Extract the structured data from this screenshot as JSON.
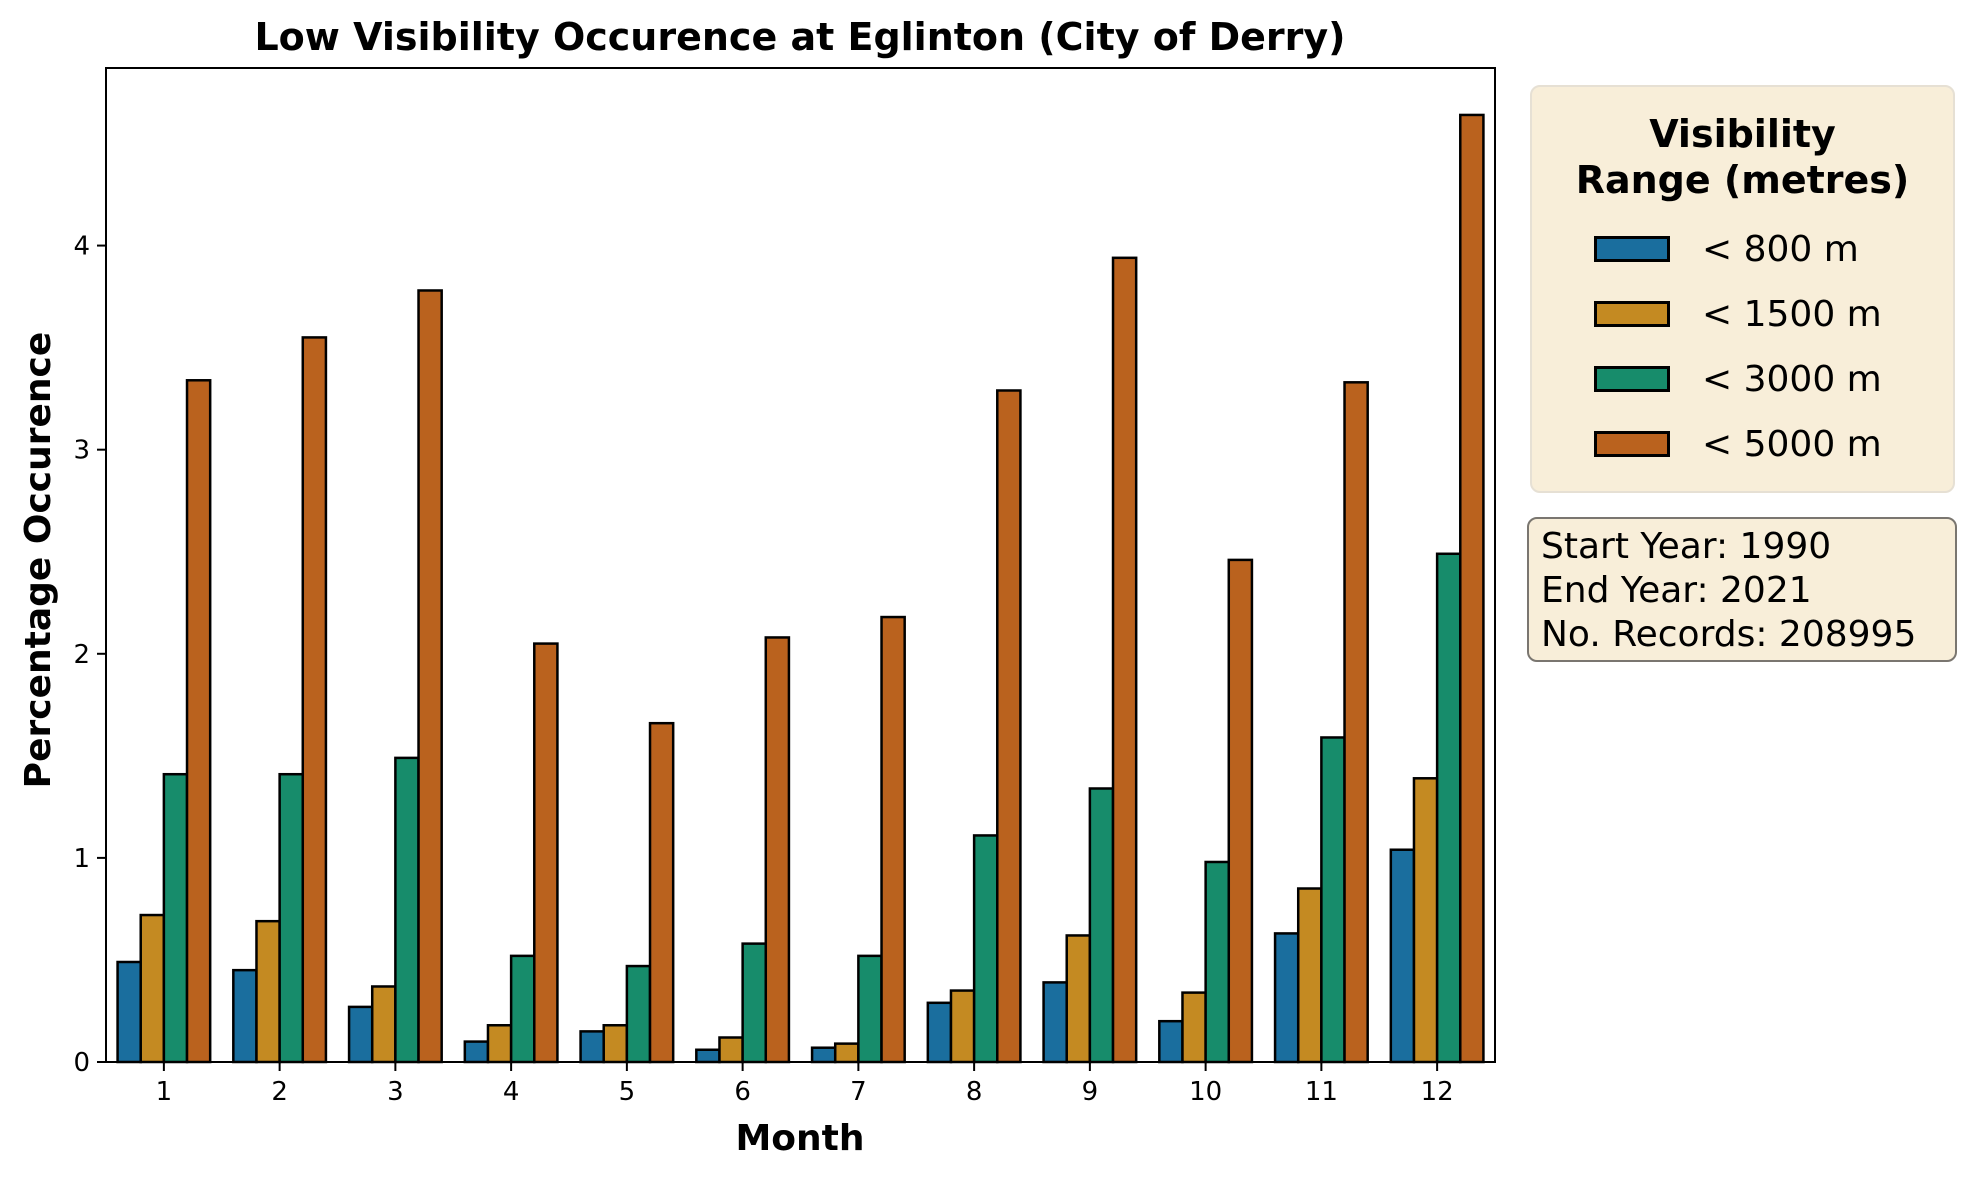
{
  "chart_data": {
    "type": "bar",
    "title": "Low Visibility Occurence at Eglinton (City of Derry)",
    "xlabel": "Month",
    "ylabel": "Percentage Occurence",
    "categories": [
      "1",
      "2",
      "3",
      "4",
      "5",
      "6",
      "7",
      "8",
      "9",
      "10",
      "11",
      "12"
    ],
    "yticks": [
      "0",
      "1",
      "2",
      "3",
      "4"
    ],
    "ylim": [
      0,
      4.87
    ],
    "grid": false,
    "legend_position": "outside-right",
    "series": [
      {
        "name": "< 800 m",
        "color": "#1a6e9e",
        "values": [
          0.49,
          0.45,
          0.27,
          0.1,
          0.15,
          0.06,
          0.07,
          0.29,
          0.39,
          0.2,
          0.63,
          1.04
        ]
      },
      {
        "name": "< 1500 m",
        "color": "#c48a22",
        "values": [
          0.72,
          0.69,
          0.37,
          0.18,
          0.18,
          0.12,
          0.09,
          0.35,
          0.62,
          0.34,
          0.85,
          1.39
        ]
      },
      {
        "name": "< 3000 m",
        "color": "#178c6b",
        "values": [
          1.41,
          1.41,
          1.49,
          0.52,
          0.47,
          0.58,
          0.52,
          1.11,
          1.34,
          0.98,
          1.59,
          2.49
        ]
      },
      {
        "name": "< 5000 m",
        "color": "#ba621e",
        "values": [
          3.34,
          3.55,
          3.78,
          2.05,
          1.66,
          2.08,
          2.18,
          3.29,
          3.94,
          2.46,
          3.33,
          4.64
        ]
      }
    ]
  },
  "legend": {
    "title_line1": "Visibility",
    "title_line2": "Range (metres)"
  },
  "info": {
    "start_year": "Start Year: 1990",
    "end_year": "End Year: 2021",
    "records": "No. Records: 208995"
  }
}
